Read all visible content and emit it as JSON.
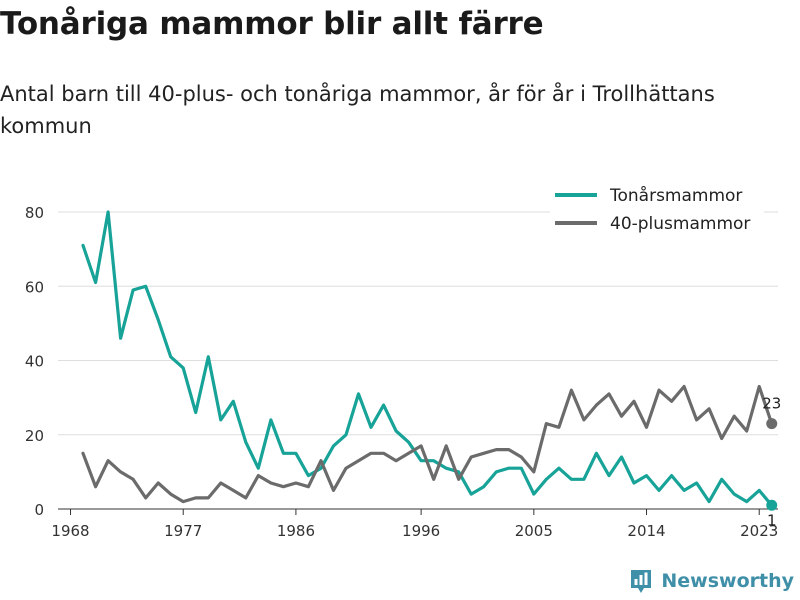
{
  "chart_data": {
    "type": "line",
    "title": "Tonåriga mammor blir allt färre",
    "subtitle": "Antal barn till 40-plus- och tonåriga mammor, år för år i Trollhättans kommun",
    "x_ticks": [
      1968,
      1977,
      1986,
      1996,
      2005,
      2014,
      2023
    ],
    "y_ticks": [
      0,
      20,
      40,
      60,
      80
    ],
    "xlim": [
      1967,
      2024.5
    ],
    "ylim": [
      0,
      80
    ],
    "grid": true,
    "legend_position": "top-right",
    "x": [
      1969,
      1970,
      1971,
      1972,
      1973,
      1974,
      1975,
      1976,
      1977,
      1978,
      1979,
      1980,
      1981,
      1982,
      1983,
      1984,
      1985,
      1986,
      1987,
      1988,
      1989,
      1990,
      1991,
      1992,
      1993,
      1994,
      1995,
      1996,
      1997,
      1998,
      1999,
      2000,
      2001,
      2002,
      2003,
      2004,
      2005,
      2006,
      2007,
      2008,
      2009,
      2010,
      2011,
      2012,
      2013,
      2014,
      2015,
      2016,
      2017,
      2018,
      2019,
      2020,
      2021,
      2022,
      2023,
      2024
    ],
    "series": [
      {
        "name": "Tonårsmammor",
        "color": "#17a398",
        "values": [
          71,
          61,
          80,
          46,
          59,
          60,
          51,
          41,
          38,
          26,
          41,
          24,
          29,
          18,
          11,
          24,
          15,
          15,
          9,
          11,
          17,
          20,
          31,
          22,
          28,
          21,
          18,
          13,
          13,
          11,
          10,
          4,
          6,
          10,
          11,
          11,
          4,
          8,
          11,
          8,
          8,
          15,
          9,
          14,
          7,
          9,
          5,
          9,
          5,
          7,
          2,
          8,
          4,
          2,
          5,
          1
        ],
        "end_label": "1"
      },
      {
        "name": "40-plusmammor",
        "color": "#6b6b6b",
        "values": [
          15,
          6,
          13,
          10,
          8,
          3,
          7,
          4,
          2,
          3,
          3,
          7,
          5,
          3,
          9,
          7,
          6,
          7,
          6,
          13,
          5,
          11,
          13,
          15,
          15,
          13,
          15,
          17,
          8,
          17,
          8,
          14,
          15,
          16,
          16,
          14,
          10,
          23,
          22,
          32,
          24,
          28,
          31,
          25,
          29,
          22,
          32,
          29,
          33,
          24,
          27,
          19,
          25,
          21,
          33,
          23
        ],
        "end_label": "23"
      }
    ]
  },
  "brand": {
    "name": "Newsworthy",
    "color": "#3f8fa8"
  }
}
